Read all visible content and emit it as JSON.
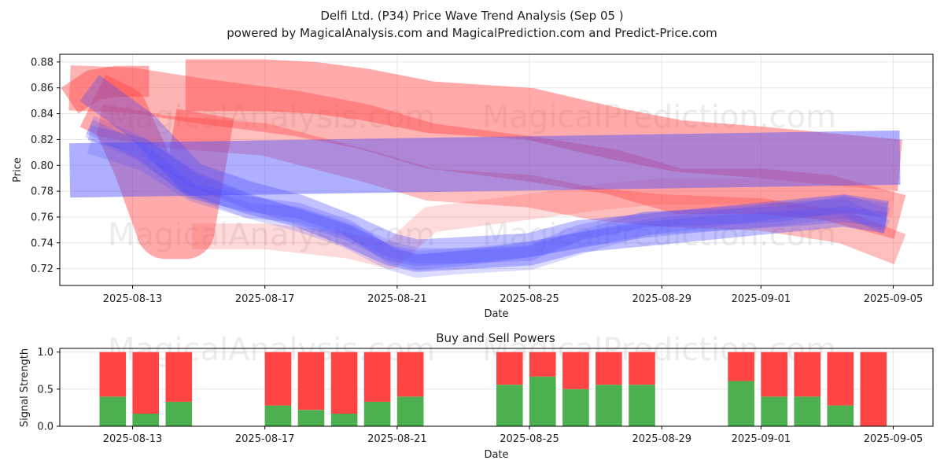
{
  "title": "Delfi Ltd. (P34) Price Wave Trend Analysis (Sep 05 )",
  "subtitle": "powered by MagicalAnalysis.com and MagicalPrediction.com and Predict-Price.com",
  "watermarks": [
    "MagicalAnalysis.com",
    "MagicalPrediction.com"
  ],
  "colors": {
    "red": "#ff4444",
    "green": "#4caf50",
    "blue": "#4d4dff",
    "grid": "#e6e6e6"
  },
  "chart_data": [
    {
      "type": "area",
      "title": "",
      "xlabel": "Date",
      "ylabel": "Price",
      "ylim": [
        0.707,
        0.886
      ],
      "xlim_days": [
        -2.2,
        24.2
      ],
      "x_tick_labels": [
        "2025-08-13",
        "2025-08-17",
        "2025-08-21",
        "2025-08-25",
        "2025-08-29",
        "2025-09-01",
        "2025-09-05"
      ],
      "x_tick_days": [
        0,
        4,
        8,
        12,
        16,
        19,
        23
      ],
      "y_ticks": [
        0.72,
        0.74,
        0.76,
        0.78,
        0.8,
        0.82,
        0.84,
        0.86,
        0.88
      ],
      "y_tick_labels": [
        "0.72",
        "0.74",
        "0.76",
        "0.78",
        "0.80",
        "0.82",
        "0.84",
        "0.86",
        "0.88"
      ],
      "bands": [
        {
          "color": "red",
          "opacity": 0.45,
          "width": 0.024,
          "x": [
            -1.9,
            -1.2,
            -0.5,
            0.5
          ],
          "y": [
            0.85,
            0.862,
            0.865,
            0.865
          ]
        },
        {
          "color": "red",
          "opacity": 0.45,
          "width": 0.045,
          "x": [
            -1.2,
            -0.4,
            0.3,
            1.0,
            1.6,
            2.2
          ],
          "y": [
            0.85,
            0.84,
            0.8,
            0.75,
            0.75,
            0.84
          ]
        },
        {
          "color": "red",
          "opacity": 0.45,
          "width": 0.04,
          "x": [
            1.6,
            4.0,
            5.5,
            7.0,
            9.0,
            12.0,
            14.5,
            16.5,
            19.0,
            21.0,
            23.2
          ],
          "y": [
            0.862,
            0.862,
            0.86,
            0.855,
            0.845,
            0.84,
            0.825,
            0.815,
            0.81,
            0.805,
            0.8
          ]
        },
        {
          "color": "red",
          "opacity": 0.4,
          "width": 0.035,
          "x": [
            -1.9,
            0.0,
            2.0,
            5.0,
            7.0,
            9.0,
            12.0,
            14.5,
            16.5,
            19.0,
            21.0,
            23.2
          ],
          "y": [
            0.86,
            0.858,
            0.85,
            0.84,
            0.83,
            0.815,
            0.805,
            0.795,
            0.78,
            0.78,
            0.775,
            0.76
          ]
        },
        {
          "color": "red",
          "opacity": 0.35,
          "width": 0.025,
          "x": [
            -1.0,
            1.0,
            4.0,
            7.0,
            9.0,
            12.0,
            14.0,
            16.0,
            19.0,
            21.5,
            23.2
          ],
          "y": [
            0.835,
            0.826,
            0.82,
            0.8,
            0.785,
            0.78,
            0.77,
            0.765,
            0.762,
            0.752,
            0.735
          ]
        },
        {
          "color": "red",
          "opacity": 0.2,
          "width": 0.02,
          "x": [
            1.8,
            4.0,
            6.5,
            7.8,
            9.0,
            12.0,
            14.0,
            16.0,
            19.0,
            21.0,
            23.0
          ],
          "y": [
            0.745,
            0.745,
            0.738,
            0.73,
            0.758,
            0.768,
            0.775,
            0.78,
            0.78,
            0.775,
            0.77
          ]
        },
        {
          "color": "blue",
          "opacity": 0.45,
          "width": 0.042,
          "x": [
            -1.9,
            23.2
          ],
          "y": [
            0.796,
            0.806
          ]
        },
        {
          "color": "blue",
          "opacity": 0.35,
          "width": 0.025,
          "x": [
            -1.3,
            0.3,
            1.8,
            3.5,
            5.0,
            6.5,
            7.8,
            8.6,
            10.0,
            12.0,
            13.5,
            15.5,
            17.5,
            19.5,
            21.5,
            22.8
          ],
          "y": [
            0.86,
            0.83,
            0.79,
            0.775,
            0.765,
            0.75,
            0.735,
            0.73,
            0.732,
            0.735,
            0.745,
            0.75,
            0.755,
            0.76,
            0.765,
            0.76
          ]
        },
        {
          "color": "blue",
          "opacity": 0.25,
          "width": 0.012,
          "x": [
            -1.3,
            0.3,
            1.8,
            3.5,
            5.0,
            6.5,
            7.8,
            8.6,
            10.0,
            12.0,
            13.5,
            15.5,
            17.5,
            19.5,
            21.5,
            22.8
          ],
          "y": [
            0.83,
            0.81,
            0.78,
            0.77,
            0.765,
            0.752,
            0.73,
            0.725,
            0.728,
            0.735,
            0.742,
            0.75,
            0.755,
            0.758,
            0.762,
            0.758
          ]
        },
        {
          "color": "blue",
          "opacity": 0.25,
          "width": 0.012,
          "x": [
            -1.3,
            0.3,
            1.8,
            3.5,
            5.0,
            6.5,
            7.8,
            8.6,
            10.0,
            12.0,
            13.5,
            15.5,
            17.5,
            19.5,
            21.5,
            22.8
          ],
          "y": [
            0.825,
            0.815,
            0.79,
            0.772,
            0.76,
            0.748,
            0.732,
            0.728,
            0.73,
            0.732,
            0.748,
            0.758,
            0.76,
            0.762,
            0.77,
            0.765
          ]
        },
        {
          "color": "blue",
          "opacity": 0.2,
          "width": 0.018,
          "x": [
            -1.3,
            0.3,
            1.8,
            3.5,
            5.0,
            6.5,
            7.8,
            8.6,
            10.0,
            12.0,
            13.5,
            15.5,
            17.5,
            19.5,
            21.5,
            22.8
          ],
          "y": [
            0.83,
            0.812,
            0.785,
            0.768,
            0.758,
            0.745,
            0.728,
            0.722,
            0.725,
            0.728,
            0.74,
            0.755,
            0.758,
            0.762,
            0.768,
            0.758
          ]
        },
        {
          "color": "blue",
          "opacity": 0.2,
          "width": 0.012,
          "x": [
            -1.3,
            0.3,
            1.8,
            3.5,
            5.0,
            6.5,
            7.8,
            8.6,
            10.0,
            12.0,
            13.5,
            15.5,
            17.5,
            19.5,
            21.5,
            22.8
          ],
          "y": [
            0.815,
            0.802,
            0.778,
            0.765,
            0.762,
            0.75,
            0.735,
            0.73,
            0.73,
            0.735,
            0.742,
            0.752,
            0.758,
            0.765,
            0.768,
            0.752
          ]
        }
      ]
    },
    {
      "type": "bar",
      "title": "Buy and Sell Powers",
      "xlabel": "Date",
      "ylabel": "Signal Strength",
      "ylim": [
        0,
        1.05
      ],
      "xlim_days": [
        -2.2,
        24.2
      ],
      "x_tick_labels": [
        "2025-08-13",
        "2025-08-17",
        "2025-08-21",
        "2025-08-25",
        "2025-08-29",
        "2025-09-01",
        "2025-09-05"
      ],
      "x_tick_days": [
        0,
        4,
        8,
        12,
        16,
        19,
        23
      ],
      "y_ticks": [
        0.0,
        0.5,
        1.0
      ],
      "y_tick_labels": [
        "0.0",
        "0.5",
        "1.0"
      ],
      "days": [
        -0.6,
        0.4,
        1.4,
        4.4,
        5.4,
        6.4,
        7.4,
        8.4,
        11.4,
        12.4,
        13.4,
        14.4,
        15.4,
        18.4,
        19.4,
        20.4,
        21.4,
        22.4
      ],
      "series": [
        {
          "name": "Buy",
          "color": "green",
          "values": [
            0.4,
            0.17,
            0.33,
            0.28,
            0.22,
            0.17,
            0.33,
            0.4,
            0.56,
            0.67,
            0.5,
            0.56,
            0.56,
            0.61,
            0.4,
            0.4,
            0.28,
            0.0
          ]
        },
        {
          "name": "Sell",
          "color": "red",
          "values": [
            0.6,
            0.83,
            0.67,
            0.72,
            0.78,
            0.83,
            0.67,
            0.6,
            0.44,
            0.33,
            0.5,
            0.44,
            0.44,
            0.39,
            0.6,
            0.6,
            0.72,
            1.0
          ]
        }
      ]
    }
  ]
}
